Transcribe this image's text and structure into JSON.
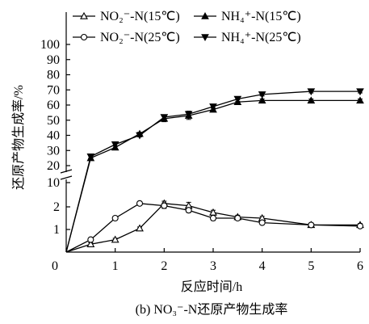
{
  "chart_data": {
    "type": "line",
    "x": [
      0,
      0.5,
      1,
      1.5,
      2,
      2.5,
      3,
      3.5,
      4,
      5,
      6
    ],
    "xlim": [
      0,
      6
    ],
    "xticks": [
      "0",
      "1",
      "2",
      "3",
      "4",
      "5",
      "6"
    ],
    "xlabel": "反应时间/h",
    "ylabel": "还原产物生成率/%",
    "y_broken_axis": true,
    "y_lower_ticks": [
      "1",
      "2",
      "10"
    ],
    "y_upper_ticks": [
      "20",
      "30",
      "40",
      "50",
      "60",
      "70",
      "80",
      "90",
      "100"
    ],
    "caption": "(b) NO₃⁻-N还原产物生成率",
    "legend_position": "top",
    "series": [
      {
        "name": "NO₂⁻-N(15℃)",
        "marker": "triangle-open",
        "values": [
          0,
          0.35,
          0.55,
          1.05,
          2.15,
          2.05,
          1.75,
          1.55,
          1.5,
          1.2,
          1.2
        ],
        "errors": [
          0,
          0.06,
          0.06,
          0.06,
          0.1,
          0.15,
          0.1,
          0.08,
          0.08,
          0.06,
          0.06
        ]
      },
      {
        "name": "NO₂⁻-N(25℃)",
        "marker": "circle-open",
        "values": [
          0,
          0.55,
          1.5,
          2.15,
          2.05,
          1.85,
          1.5,
          1.5,
          1.3,
          1.2,
          1.15
        ],
        "errors": [
          0,
          0.06,
          0.08,
          0.08,
          0.12,
          0.1,
          0.1,
          0.08,
          0.08,
          0.06,
          0.06
        ]
      },
      {
        "name": "NH₄⁺-N(15℃)",
        "marker": "triangle-filled",
        "values": [
          0,
          25,
          32,
          41,
          51,
          53,
          57,
          62,
          63,
          63,
          63
        ],
        "errors": [
          0,
          1,
          1,
          1,
          2,
          2.5,
          1,
          1.5,
          1,
          1,
          1
        ]
      },
      {
        "name": "NH₄⁺-N(25℃)",
        "marker": "triangle-down-filled",
        "values": [
          0,
          26,
          34,
          40,
          52,
          54,
          59,
          64,
          67,
          69,
          69
        ],
        "errors": [
          0,
          1,
          1,
          1,
          1.5,
          2,
          1,
          1.5,
          1,
          1,
          1
        ]
      }
    ]
  }
}
